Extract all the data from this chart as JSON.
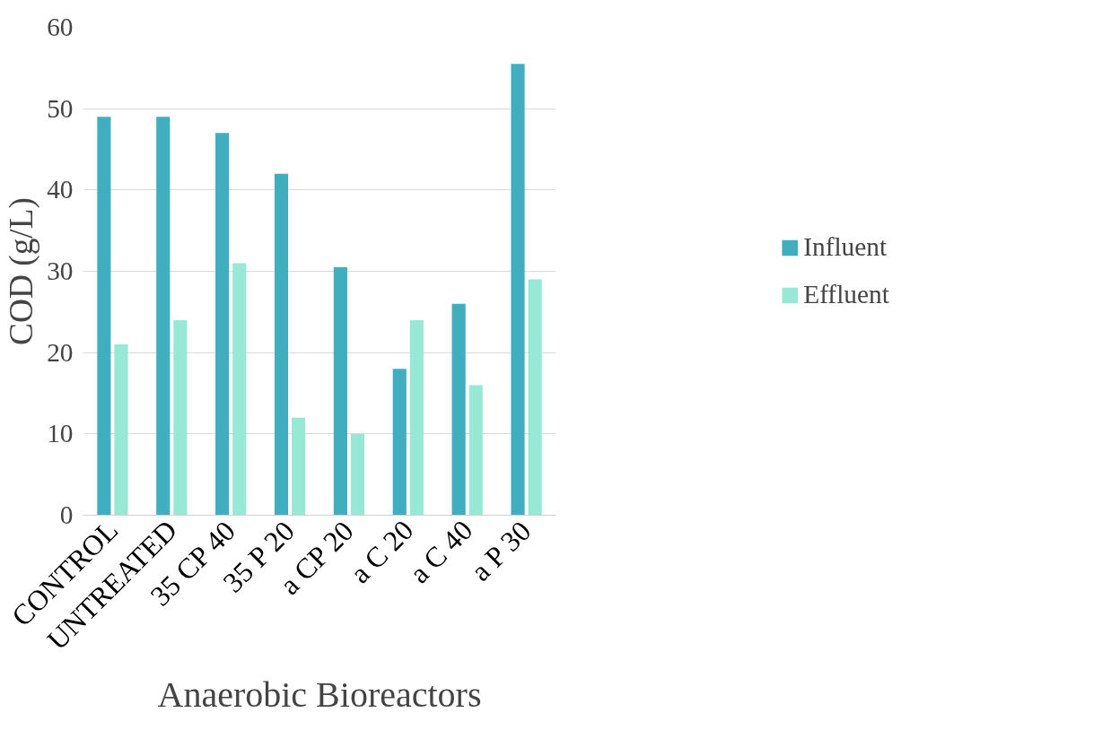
{
  "chart_data": {
    "type": "bar",
    "xlabel": "Anaerobic Bioreactors",
    "ylabel": "COD (g/L)",
    "categories": [
      "CONTROL",
      "UNTREATED",
      "35 CP 40",
      "35 P 20",
      "a CP 20",
      "a C 20",
      "a C 40",
      "a P 30"
    ],
    "series": [
      {
        "name": "Influent",
        "color": "#40aebf",
        "values": [
          49,
          49,
          47,
          42,
          30.5,
          18,
          26,
          55.5
        ]
      },
      {
        "name": "Effluent",
        "color": "#98e8d6",
        "values": [
          21,
          24,
          31,
          12,
          10,
          24,
          16,
          29
        ]
      }
    ],
    "ylim": [
      0,
      60
    ],
    "yticks": [
      0,
      10,
      20,
      30,
      40,
      50,
      60
    ],
    "grid": "y",
    "legend": "right"
  }
}
